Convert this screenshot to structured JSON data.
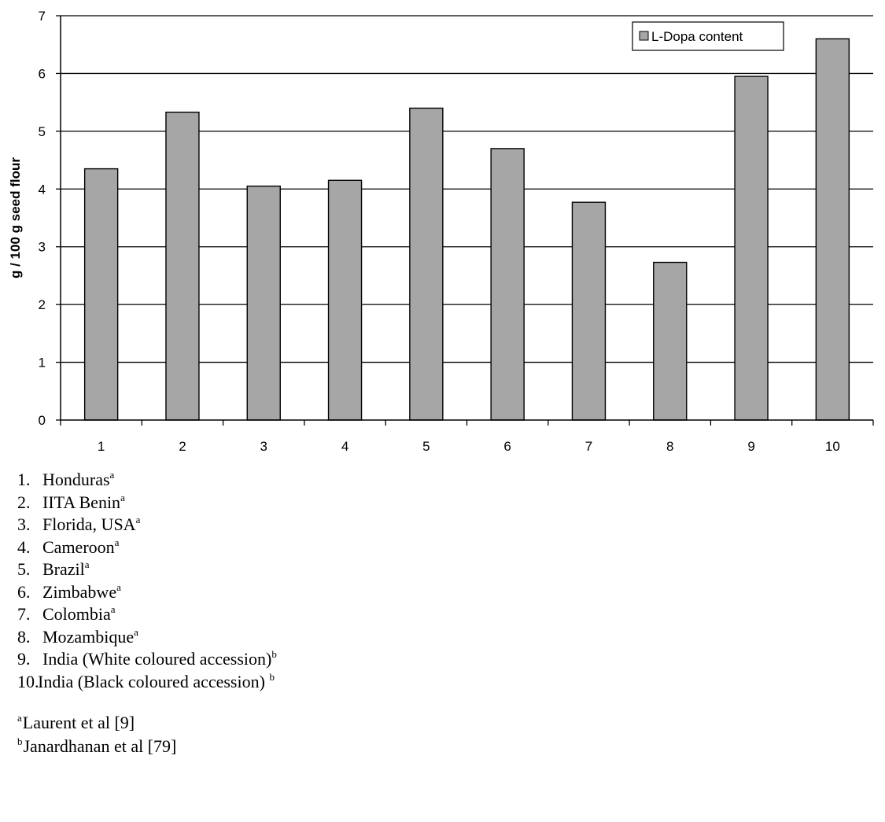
{
  "chart_data": {
    "type": "bar",
    "categories": [
      "1",
      "2",
      "3",
      "4",
      "5",
      "6",
      "7",
      "8",
      "9",
      "10"
    ],
    "series": [
      {
        "name": "L-Dopa content",
        "values": [
          4.35,
          5.33,
          4.05,
          4.15,
          5.4,
          4.7,
          3.77,
          2.73,
          5.95,
          6.6
        ]
      }
    ],
    "title": "",
    "xlabel": "",
    "ylabel": "g / 100 g seed flour",
    "ylim": [
      0,
      7
    ],
    "yticks": [
      "0",
      "1",
      "2",
      "3",
      "4",
      "5",
      "6",
      "7"
    ],
    "grid": true,
    "legend_position": "top-right",
    "bar_color": "#a6a6a6"
  },
  "key": [
    {
      "num": "1.",
      "label": "Honduras",
      "sup": "a"
    },
    {
      "num": "2.",
      "label": "IITA Benin",
      "sup": "a"
    },
    {
      "num": "3.",
      "label": "Florida, USA",
      "sup": "a"
    },
    {
      "num": "4.",
      "label": "Cameroon",
      "sup": "a"
    },
    {
      "num": "5.",
      "label": "Brazil",
      "sup": "a"
    },
    {
      "num": "6.",
      "label": "Zimbabwe",
      "sup": "a"
    },
    {
      "num": "7.",
      "label": "Colombia",
      "sup": "a"
    },
    {
      "num": "8.",
      "label": "Mozambique",
      "sup": "a"
    },
    {
      "num": "9.",
      "label": "India (White coloured accession)",
      "sup": "b"
    },
    {
      "num": "10.",
      "label": "India (Black coloured accession) ",
      "sup": "b"
    }
  ],
  "references": [
    {
      "sup": "a",
      "text": "Laurent et al [9]"
    },
    {
      "sup": "b",
      "text": "Janardhanan et al [79]"
    }
  ]
}
